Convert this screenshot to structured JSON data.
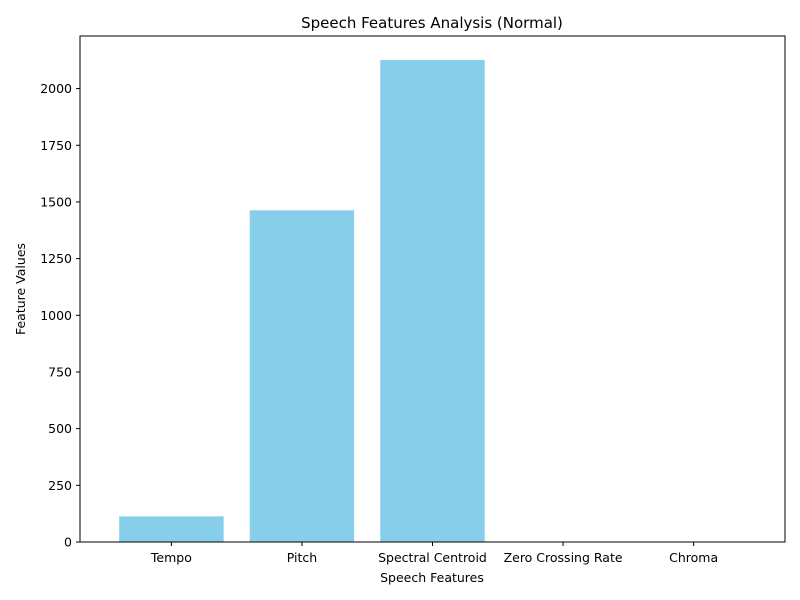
{
  "chart_data": {
    "type": "bar",
    "title": "Speech Features Analysis (Normal)",
    "xlabel": "Speech Features",
    "ylabel": "Feature Values",
    "categories": [
      "Tempo",
      "Pitch",
      "Spectral Centroid",
      "Zero Crossing Rate",
      "Chroma"
    ],
    "values": [
      113,
      1463,
      2126,
      0.1,
      0.4
    ],
    "ylim": [
      0,
      2232
    ],
    "yticks": [
      0,
      250,
      500,
      750,
      1000,
      1250,
      1500,
      1750,
      2000
    ],
    "bar_color": "#87ceeb",
    "grid": false,
    "legend": "none"
  }
}
